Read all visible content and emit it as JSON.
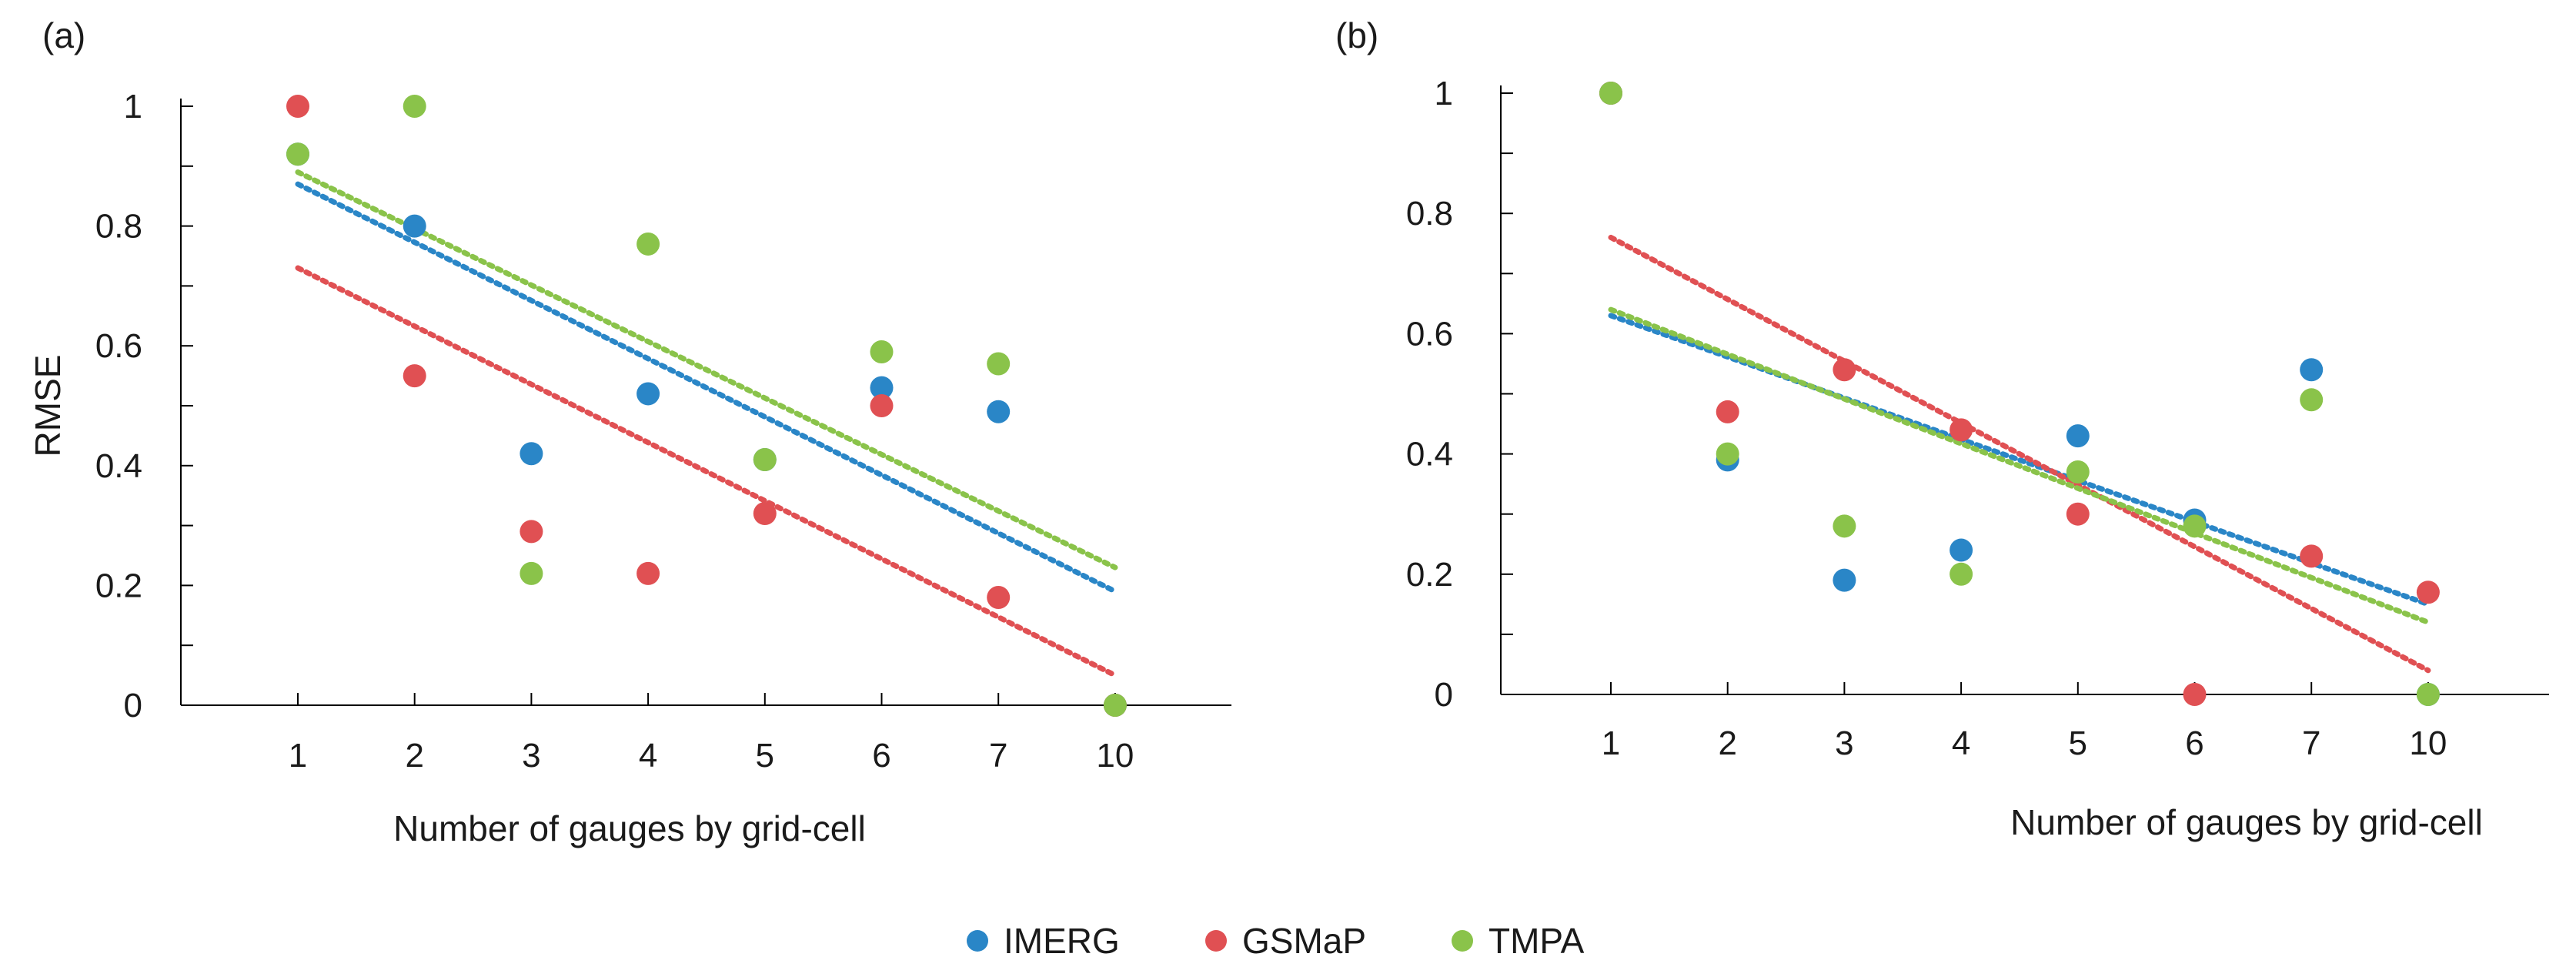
{
  "legend": {
    "placement": "bottom-center",
    "items": [
      {
        "label": "IMERG",
        "color": "#2a86c7"
      },
      {
        "label": "GSMaP",
        "color": "#e05053"
      },
      {
        "label": "TMPA",
        "color": "#8ac34a"
      }
    ]
  },
  "chart_data": [
    {
      "type": "scatter",
      "panel_label": "(a)",
      "title": "",
      "xlabel": "Number of gauges by grid-cell",
      "ylabel": "RMSE",
      "x_tick_labels": [
        "1",
        "2",
        "3",
        "4",
        "5",
        "6",
        "7",
        "10"
      ],
      "y_tick_labels": [
        "0",
        "0.2",
        "0.4",
        "0.6",
        "0.8",
        "1"
      ],
      "ylim": [
        0,
        1
      ],
      "grid": false,
      "series": [
        {
          "name": "IMERG",
          "color": "#2a86c7",
          "values": [
            0.92,
            0.8,
            0.42,
            0.52,
            0.41,
            0.53,
            0.49,
            0.0
          ],
          "trend": [
            0.87,
            0.19
          ]
        },
        {
          "name": "GSMaP",
          "color": "#e05053",
          "values": [
            1.0,
            0.55,
            0.29,
            0.22,
            0.32,
            0.5,
            0.18,
            0.0
          ],
          "trend": [
            0.73,
            0.05
          ]
        },
        {
          "name": "TMPA",
          "color": "#8ac34a",
          "values": [
            0.92,
            1.0,
            0.22,
            0.77,
            0.41,
            0.59,
            0.57,
            0.0
          ],
          "trend": [
            0.89,
            0.23
          ]
        }
      ]
    },
    {
      "type": "scatter",
      "panel_label": "(b)",
      "title": "",
      "xlabel": "Number of gauges by grid-cell",
      "ylabel": "",
      "x_tick_labels": [
        "1",
        "2",
        "3",
        "4",
        "5",
        "6",
        "7",
        "10"
      ],
      "y_tick_labels": [
        "0",
        "0.2",
        "0.4",
        "0.6",
        "0.8",
        "1"
      ],
      "ylim": [
        0,
        1
      ],
      "grid": false,
      "series": [
        {
          "name": "IMERG",
          "color": "#2a86c7",
          "values": [
            1.0,
            0.39,
            0.19,
            0.24,
            0.43,
            0.29,
            0.54,
            0.0
          ],
          "trend": [
            0.63,
            0.15
          ]
        },
        {
          "name": "GSMaP",
          "color": "#e05053",
          "values": [
            1.0,
            0.47,
            0.54,
            0.44,
            0.3,
            0.0,
            0.23,
            0.17
          ],
          "trend": [
            0.76,
            0.04
          ]
        },
        {
          "name": "TMPA",
          "color": "#8ac34a",
          "values": [
            1.0,
            0.4,
            0.28,
            0.2,
            0.37,
            0.28,
            0.49,
            0.0
          ],
          "trend": [
            0.64,
            0.12
          ]
        }
      ]
    }
  ]
}
